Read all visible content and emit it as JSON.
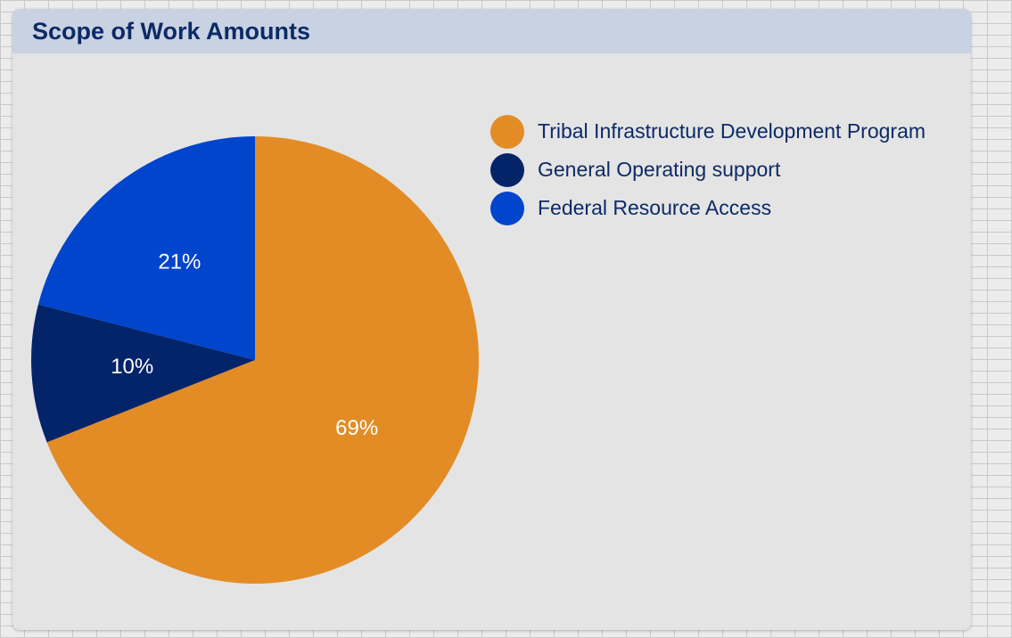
{
  "card": {
    "title": "Scope of Work Amounts"
  },
  "chart_data": {
    "type": "pie",
    "title": "Scope of Work Amounts",
    "categories": [
      "Tribal Infrastructure Development Program",
      "General Operating support",
      "Federal Resource Access"
    ],
    "values": [
      69,
      10,
      21
    ],
    "labels": [
      "69%",
      "10%",
      "21%"
    ],
    "colors": [
      "#e38c26",
      "#04246a",
      "#0045cc"
    ],
    "legend": "top-right"
  }
}
